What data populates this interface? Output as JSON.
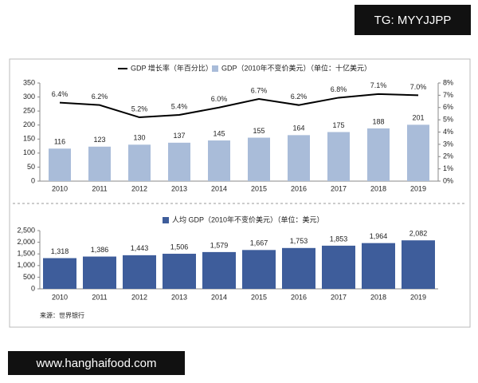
{
  "header": {
    "tag": "TG: MYYJJPP"
  },
  "footer": {
    "url": "www.hanghaifood.com"
  },
  "source": "来源：世界银行",
  "chart_data": [
    {
      "type": "bar",
      "categories": [
        "2010",
        "2011",
        "2012",
        "2013",
        "2014",
        "2015",
        "2016",
        "2017",
        "2018",
        "2019"
      ],
      "series": [
        {
          "name": "GDP 增长率（年百分比）",
          "type": "line",
          "axis": "y2",
          "color": "#000000",
          "values": [
            6.4,
            6.2,
            5.2,
            5.4,
            6.0,
            6.7,
            6.2,
            6.8,
            7.1,
            7.0
          ],
          "value_labels": [
            "6.4%",
            "6.2%",
            "5.2%",
            "5.4%",
            "6.0%",
            "6.7%",
            "6.2%",
            "6.8%",
            "7.1%",
            "7.0%"
          ]
        },
        {
          "name": "GDP（2010年不变价美元）（单位：十亿美元）",
          "type": "bar",
          "color": "#a9bcd9",
          "values": [
            116,
            123,
            130,
            137,
            145,
            155,
            164,
            175,
            188,
            201
          ]
        }
      ],
      "ylim": [
        0,
        350
      ],
      "yticks": [
        0,
        50,
        100,
        150,
        200,
        250,
        300,
        350
      ],
      "y2lim": [
        0,
        8
      ],
      "y2ticks": [
        {
          "value": 0,
          "label": "0%"
        },
        {
          "value": 1,
          "label": "1%"
        },
        {
          "value": 2,
          "label": "2%"
        },
        {
          "value": 3,
          "label": "3%"
        },
        {
          "value": 4,
          "label": "4%"
        },
        {
          "value": 5,
          "label": "5%"
        },
        {
          "value": 6,
          "label": "6%"
        },
        {
          "value": 7,
          "label": "7%"
        },
        {
          "value": 8,
          "label": "8%"
        }
      ]
    },
    {
      "type": "bar",
      "categories": [
        "2010",
        "2011",
        "2012",
        "2013",
        "2014",
        "2015",
        "2016",
        "2017",
        "2018",
        "2019"
      ],
      "series": [
        {
          "name": "人均 GDP（2010年不变价美元）（单位：美元）",
          "color": "#3e5d9b",
          "values": [
            1318,
            1386,
            1443,
            1506,
            1579,
            1667,
            1753,
            1853,
            1964,
            2082
          ],
          "value_labels": [
            "1,318",
            "1,386",
            "1,443",
            "1,506",
            "1,579",
            "1,667",
            "1,753",
            "1,853",
            "1,964",
            "2,082"
          ]
        }
      ],
      "ylim": [
        0,
        2500
      ],
      "yticks": [
        0,
        500,
        {
          "value": 1000,
          "label": "1,000"
        },
        {
          "value": 1500,
          "label": "1,500"
        },
        {
          "value": 2000,
          "label": "2,000"
        },
        {
          "value": 2500,
          "label": "2,500"
        }
      ]
    }
  ]
}
